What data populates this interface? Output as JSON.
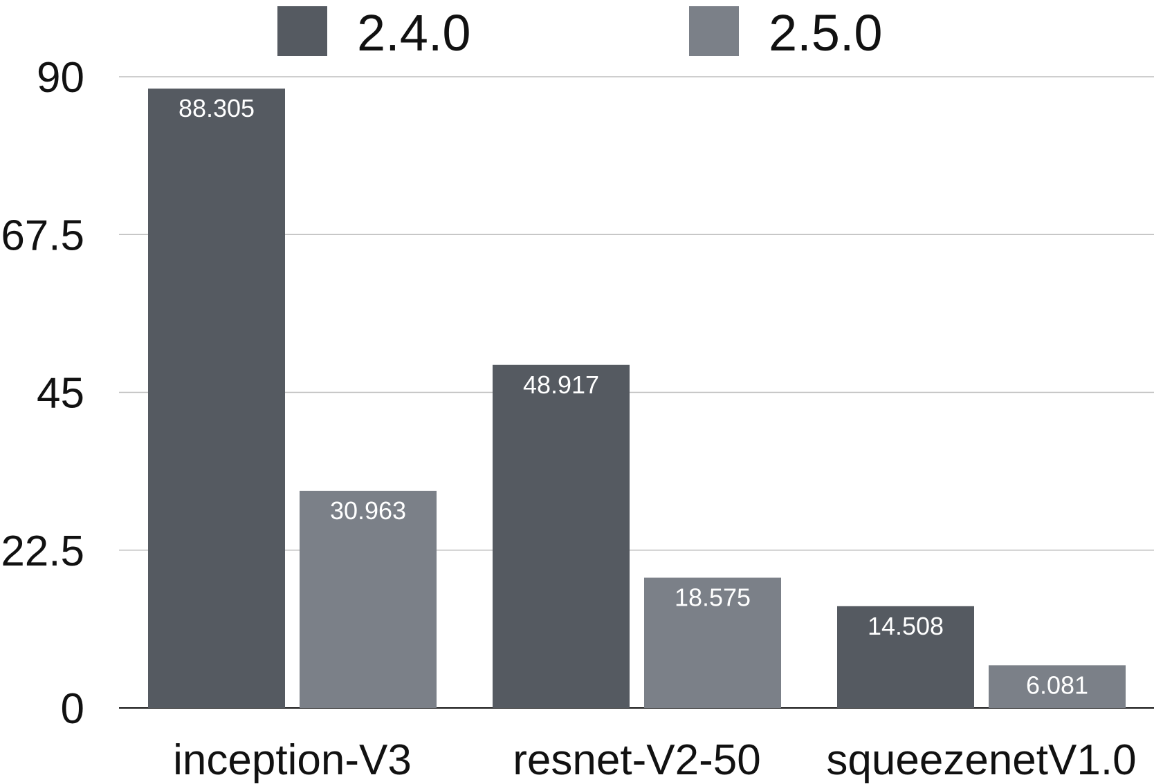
{
  "chart_data": {
    "type": "bar",
    "categories": [
      "inception-V3",
      "resnet-V2-50",
      "squeezenetV1.0"
    ],
    "series": [
      {
        "name": "2.4.0",
        "values": [
          88.305,
          48.917,
          14.508
        ],
        "labels": [
          "88.305",
          "48.917",
          "14.508"
        ],
        "color": "#555a61"
      },
      {
        "name": "2.5.0",
        "values": [
          30.963,
          18.575,
          6.081
        ],
        "labels": [
          "30.963",
          "18.575",
          "6.081"
        ],
        "color": "#7b8088"
      }
    ],
    "yticks": [
      "0",
      "22.5",
      "45",
      "67.5",
      "90"
    ],
    "ylim": [
      0,
      90
    ],
    "grid": true,
    "legend": "top",
    "title": "",
    "xlabel": "",
    "ylabel": ""
  }
}
